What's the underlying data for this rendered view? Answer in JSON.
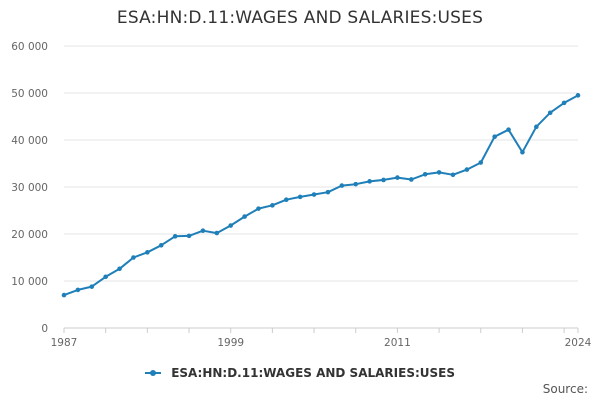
{
  "title": "ESA:HN:D.11:WAGES AND SALARIES:USES",
  "legend": {
    "label": "ESA:HN:D.11:WAGES AND SALARIES:USES"
  },
  "source_label": "Source:",
  "colors": {
    "series": "#1f7fb8",
    "grid": "#e6e6e6",
    "axis": "#cccccc"
  },
  "chart_data": {
    "type": "line",
    "title": "ESA:HN:D.11:WAGES AND SALARIES:USES",
    "xlabel": "",
    "ylabel": "",
    "ylim": [
      0,
      60000
    ],
    "xlim": [
      1987,
      2024
    ],
    "yticks": [
      "0",
      "10 000",
      "20 000",
      "30 000",
      "40 000",
      "50 000",
      "60 000"
    ],
    "xticks": [
      "1987",
      "1999",
      "2011",
      "2024"
    ],
    "grid": true,
    "legend_position": "bottom",
    "x": [
      1987,
      1988,
      1989,
      1990,
      1991,
      1992,
      1993,
      1994,
      1995,
      1996,
      1997,
      1998,
      1999,
      2000,
      2001,
      2002,
      2003,
      2004,
      2005,
      2006,
      2007,
      2008,
      2009,
      2010,
      2011,
      2012,
      2013,
      2014,
      2015,
      2016,
      2017,
      2018,
      2019,
      2020,
      2021,
      2022,
      2023,
      2024
    ],
    "series": [
      {
        "name": "ESA:HN:D.11:WAGES AND SALARIES:USES",
        "values": [
          7000,
          8100,
          8800,
          10900,
          12600,
          15000,
          16100,
          17600,
          19500,
          19600,
          20700,
          20200,
          21800,
          23700,
          25400,
          26100,
          27300,
          27900,
          28400,
          28900,
          30300,
          30600,
          31200,
          31500,
          32000,
          31600,
          32700,
          33100,
          32600,
          33700,
          35200,
          40700,
          42200,
          37400,
          42800,
          45800,
          47900,
          49500
        ]
      }
    ]
  }
}
